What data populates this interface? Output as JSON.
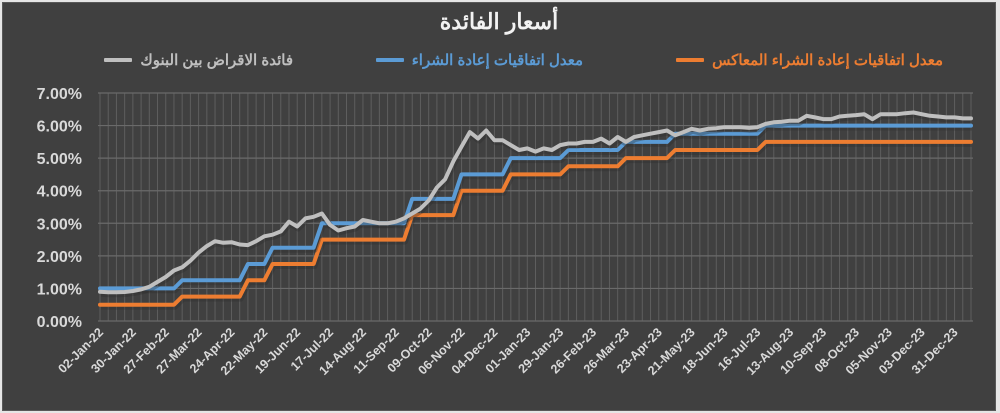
{
  "chart_data": {
    "type": "line",
    "title": "أسعار الفائدة",
    "xlabel": "",
    "ylabel": "",
    "ylim": [
      0,
      7
    ],
    "y_ticks": [
      "0.00%",
      "1.00%",
      "2.00%",
      "3.00%",
      "4.00%",
      "5.00%",
      "6.00%",
      "7.00%"
    ],
    "x_tick_labels": [
      "02-Jan-22",
      "30-Jan-22",
      "27-Feb-22",
      "27-Mar-22",
      "24-Apr-22",
      "22-May-22",
      "19-Jun-22",
      "17-Jul-22",
      "14-Aug-22",
      "11-Sep-22",
      "09-Oct-22",
      "06-Nov-22",
      "04-Dec-22",
      "01-Jan-23",
      "29-Jan-23",
      "26-Feb-23",
      "26-Mar-23",
      "23-Apr-23",
      "21-May-23",
      "18-Jun-23",
      "16-Jul-23",
      "13-Aug-23",
      "10-Sep-23",
      "08-Oct-23",
      "05-Nov-23",
      "03-Dec-23",
      "31-Dec-23"
    ],
    "x_tick_every": 4,
    "frequency": "weekly",
    "grid": true,
    "legend_position": "top",
    "series": [
      {
        "name": "معدل اتفاقيات إعادة الشراء المعاكس",
        "color": "#ed7d31",
        "step_changes": [
          {
            "index": 0,
            "value": 0.5
          },
          {
            "index": 10,
            "value": 0.75
          },
          {
            "index": 18,
            "value": 1.25
          },
          {
            "index": 21,
            "value": 1.75
          },
          {
            "index": 27,
            "value": 2.5
          },
          {
            "index": 38,
            "value": 3.25
          },
          {
            "index": 44,
            "value": 4.0
          },
          {
            "index": 50,
            "value": 4.5
          },
          {
            "index": 57,
            "value": 4.75
          },
          {
            "index": 64,
            "value": 5.0
          },
          {
            "index": 70,
            "value": 5.25
          },
          {
            "index": 81,
            "value": 5.5
          }
        ]
      },
      {
        "name": "معدل اتفاقيات إعادة الشراء",
        "color": "#5b9bd5",
        "step_changes": [
          {
            "index": 0,
            "value": 1.0
          },
          {
            "index": 10,
            "value": 1.25
          },
          {
            "index": 18,
            "value": 1.75
          },
          {
            "index": 21,
            "value": 2.25
          },
          {
            "index": 27,
            "value": 3.0
          },
          {
            "index": 38,
            "value": 3.75
          },
          {
            "index": 44,
            "value": 4.5
          },
          {
            "index": 50,
            "value": 5.0
          },
          {
            "index": 57,
            "value": 5.25
          },
          {
            "index": 64,
            "value": 5.5
          },
          {
            "index": 70,
            "value": 5.75
          },
          {
            "index": 81,
            "value": 6.0
          }
        ]
      },
      {
        "name": "فائدة الاقراض بين البنوك",
        "color": "#bfbfbf",
        "values": [
          0.9,
          0.88,
          0.88,
          0.89,
          0.92,
          0.97,
          1.05,
          1.2,
          1.35,
          1.55,
          1.65,
          1.85,
          2.1,
          2.3,
          2.45,
          2.4,
          2.42,
          2.35,
          2.33,
          2.45,
          2.6,
          2.65,
          2.75,
          3.05,
          2.9,
          3.15,
          3.2,
          3.3,
          2.95,
          2.78,
          2.85,
          2.9,
          3.1,
          3.05,
          3.0,
          3.0,
          3.05,
          3.15,
          3.3,
          3.45,
          3.7,
          4.1,
          4.35,
          4.9,
          5.35,
          5.8,
          5.6,
          5.85,
          5.55,
          5.55,
          5.4,
          5.25,
          5.3,
          5.2,
          5.3,
          5.25,
          5.4,
          5.45,
          5.45,
          5.5,
          5.5,
          5.6,
          5.45,
          5.65,
          5.5,
          5.65,
          5.7,
          5.75,
          5.8,
          5.85,
          5.7,
          5.8,
          5.9,
          5.85,
          5.9,
          5.92,
          5.95,
          5.95,
          5.95,
          5.93,
          5.95,
          6.05,
          6.1,
          6.12,
          6.15,
          6.15,
          6.3,
          6.25,
          6.2,
          6.2,
          6.28,
          6.3,
          6.32,
          6.35,
          6.2,
          6.35,
          6.35,
          6.35,
          6.38,
          6.4,
          6.35,
          6.3,
          6.28,
          6.25,
          6.25,
          6.22,
          6.22
        ]
      }
    ],
    "n_points": 107
  },
  "legend": {
    "items": [
      {
        "label": "معدل اتفاقيات إعادة الشراء المعاكس",
        "color": "#ed7d31"
      },
      {
        "label": "معدل اتفاقيات إعادة الشراء",
        "color": "#5b9bd5"
      },
      {
        "label": "فائدة الاقراض بين البنوك",
        "color": "#bfbfbf"
      }
    ]
  },
  "colors": {
    "background": "#404040",
    "gridline": "#5e5e5e",
    "text": "#d9d9d9"
  }
}
